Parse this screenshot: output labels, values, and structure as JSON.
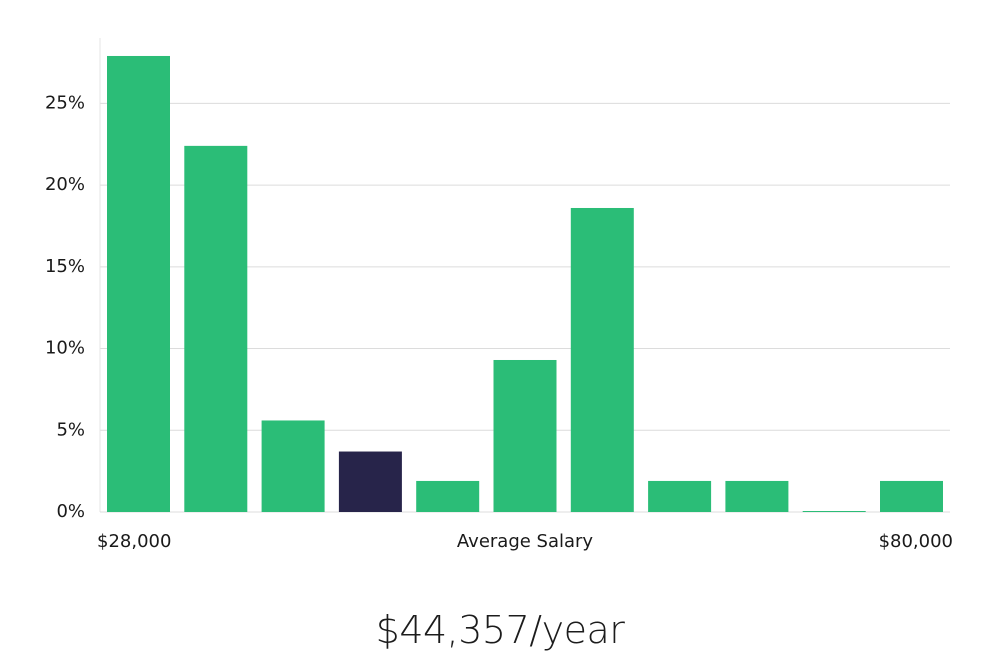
{
  "chart_data": {
    "type": "bar",
    "title": "",
    "xlabel": "Average Salary",
    "ylabel": "",
    "x_min_label": "$28,000",
    "x_max_label": "$80,000",
    "yticks": [
      "0%",
      "5%",
      "10%",
      "15%",
      "20%",
      "25%"
    ],
    "ylim": [
      0,
      29
    ],
    "grid": true,
    "categories": [
      "1",
      "2",
      "3",
      "4",
      "5",
      "6",
      "7",
      "8",
      "9",
      "10",
      "11"
    ],
    "values": [
      27.9,
      22.4,
      5.6,
      3.7,
      1.9,
      9.3,
      18.6,
      1.9,
      1.9,
      0.05,
      1.9
    ],
    "highlight_index": 3,
    "colors": {
      "bar": "#2bbd77",
      "highlight": "#27244a",
      "grid": "#dcdcdc",
      "axis": "#e4e4e4"
    }
  },
  "summary": {
    "salary_text": "$44,357/year"
  }
}
